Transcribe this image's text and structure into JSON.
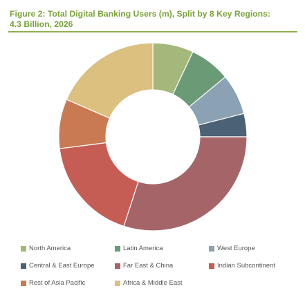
{
  "title_line1": "Figure 2: Total Digital Banking Users (m), Split by 8 Key Regions:",
  "title_line2": "4.3 Billion, 2026",
  "chart_data": {
    "type": "pie",
    "donut": true,
    "legend": "bottom",
    "categories": [
      "North America",
      "Latin America",
      "West Europe",
      "Central & East Europe",
      "Far East & China",
      "Indian Subcontinent",
      "Rest of Asia Pacific",
      "Africa & Middle East"
    ],
    "values": [
      7.0,
      7.0,
      7.0,
      4.0,
      30.0,
      18.0,
      8.5,
      18.5
    ],
    "colors": [
      "#a3b87a",
      "#6b9a77",
      "#8aa2b3",
      "#4b6275",
      "#a46468",
      "#c65d55",
      "#c97a52",
      "#dcc080"
    ]
  }
}
